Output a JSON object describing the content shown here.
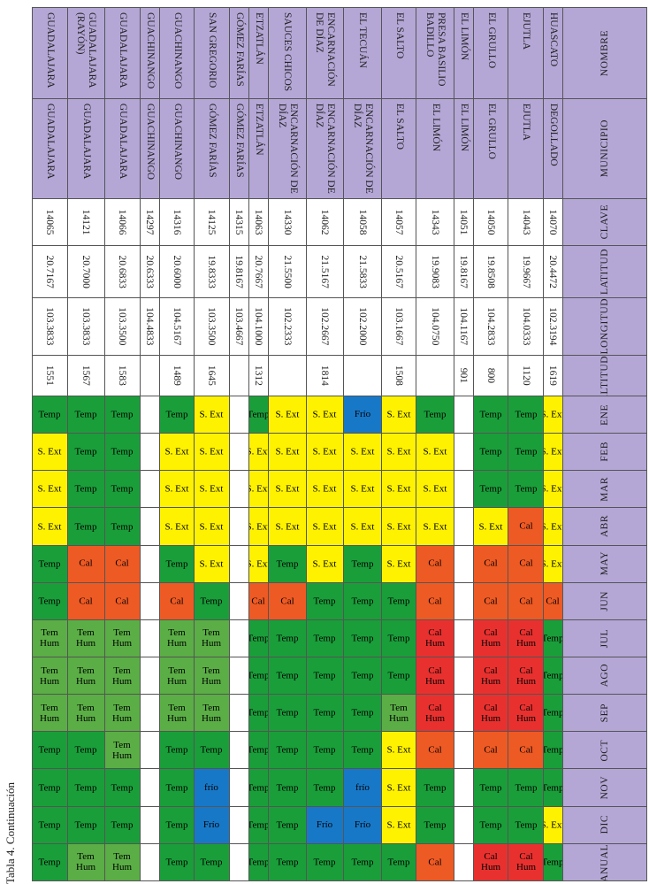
{
  "caption": "Tabla 4. Continuación",
  "headers": [
    "NOMBRE",
    "MUNICIPIO",
    "CLAVE",
    "LATITUD",
    "LONGITUD",
    "ALTITUD",
    "ENE",
    "FEB",
    "MAR",
    "ABR",
    "MAY",
    "JUN",
    "JUL",
    "AGO",
    "SEP",
    "OCT",
    "NOV",
    "DIC",
    "ANUAL"
  ],
  "climate_labels": {
    "T": "Temp",
    "S": "S. Ext",
    "C": "Cal",
    "H": "Cal Hum",
    "F": "Frío",
    "f": "frío",
    "M": "Tem Hum",
    "N": ""
  },
  "climate_colors": {
    "T": "#1a9e3a",
    "S": "#fff200",
    "C": "#ee5a24",
    "H": "#e8312f",
    "F": "#1878c8",
    "M": "#5aae45",
    "N": "#ffffff"
  },
  "rows": [
    {
      "nombre": "HUASCATO",
      "municipio": "DEGOLLADO",
      "clave": "14070",
      "latitud": "20.4472",
      "longitud": "102.3194",
      "altitud": "1619",
      "climate": [
        "S",
        "S",
        "S",
        "S",
        "S",
        "C",
        "T",
        "T",
        "T",
        "T",
        "T",
        "S",
        "T"
      ]
    },
    {
      "nombre": "EJUTLA",
      "municipio": "EJUTLA",
      "clave": "14043",
      "latitud": "19.9667",
      "longitud": "104.0333",
      "altitud": "1120",
      "climate": [
        "T",
        "T",
        "T",
        "C",
        "C",
        "C",
        "H",
        "H",
        "H",
        "C",
        "T",
        "T",
        "H"
      ]
    },
    {
      "nombre": "EL GRULLO",
      "municipio": "EL GRULLO",
      "clave": "14050",
      "latitud": "19.8508",
      "longitud": "104.2833",
      "altitud": "800",
      "climate": [
        "T",
        "T",
        "T",
        "S",
        "C",
        "C",
        "H",
        "H",
        "H",
        "C",
        "T",
        "T",
        "H"
      ]
    },
    {
      "nombre": "EL LIMÓN",
      "municipio": "EL LIMÓN",
      "clave": "14051",
      "latitud": "19.8167",
      "longitud": "104.1167",
      "altitud": "901",
      "climate": [
        "N",
        "N",
        "N",
        "N",
        "N",
        "N",
        "N",
        "N",
        "N",
        "N",
        "N",
        "N",
        "N"
      ]
    },
    {
      "nombre": "PRESA BASILIO BADILLO",
      "municipio": "EL LIMÓN",
      "clave": "14343",
      "latitud": "19.9083",
      "longitud": "104.0750",
      "altitud": "",
      "climate": [
        "T",
        "S",
        "S",
        "S",
        "C",
        "C",
        "H",
        "H",
        "H",
        "C",
        "T",
        "T",
        "C"
      ]
    },
    {
      "nombre": "EL SALTO",
      "municipio": "EL SALTO",
      "clave": "14057",
      "latitud": "20.5167",
      "longitud": "103.1667",
      "altitud": "1508",
      "climate": [
        "S",
        "S",
        "S",
        "S",
        "S",
        "T",
        "T",
        "T",
        "M",
        "S",
        "S",
        "S",
        "T"
      ]
    },
    {
      "nombre": "EL TECUÁN",
      "municipio": "ENCARNACIÓN DE DÍAZ",
      "clave": "14058",
      "latitud": "21.5833",
      "longitud": "102.2000",
      "altitud": "",
      "climate": [
        "F",
        "S",
        "S",
        "S",
        "T",
        "T",
        "T",
        "T",
        "T",
        "T",
        "f",
        "F",
        "T"
      ]
    },
    {
      "nombre": "ENCARNACIÓN DE DÍAZ",
      "municipio": "ENCARNACIÓN DE DÍAZ",
      "clave": "14062",
      "latitud": "21.5167",
      "longitud": "102.2667",
      "altitud": "1814",
      "climate": [
        "S",
        "S",
        "S",
        "S",
        "S",
        "T",
        "T",
        "T",
        "T",
        "T",
        "T",
        "F",
        "T"
      ]
    },
    {
      "nombre": "SAUCES CHICOS",
      "municipio": "ENCARNACIÓN DE DÍAZ",
      "clave": "14330",
      "latitud": "21.5500",
      "longitud": "102.2333",
      "altitud": "",
      "climate": [
        "S",
        "S",
        "S",
        "S",
        "T",
        "C",
        "T",
        "T",
        "T",
        "T",
        "T",
        "T",
        "T"
      ]
    },
    {
      "nombre": "ETZATLÁN",
      "municipio": "ETZATLÁN",
      "clave": "14063",
      "latitud": "20.7667",
      "longitud": "104.1000",
      "altitud": "1312",
      "climate": [
        "T",
        "S",
        "S",
        "S",
        "S",
        "C",
        "T",
        "T",
        "T",
        "T",
        "T",
        "T",
        "T"
      ]
    },
    {
      "nombre": "GÓMEZ FARÍAS",
      "municipio": "GÓMEZ FARÍAS",
      "clave": "14315",
      "latitud": "19.8167",
      "longitud": "103.4667",
      "altitud": "",
      "climate": [
        "N",
        "N",
        "N",
        "N",
        "N",
        "N",
        "N",
        "N",
        "N",
        "N",
        "N",
        "N",
        "N"
      ]
    },
    {
      "nombre": "SAN GREGORIO",
      "municipio": "GÓMEZ FARÍAS",
      "clave": "14125",
      "latitud": "19.8333",
      "longitud": "103.3500",
      "altitud": "1645",
      "climate": [
        "S",
        "S",
        "S",
        "S",
        "S",
        "T",
        "M",
        "M",
        "M",
        "T",
        "f",
        "F",
        "T"
      ]
    },
    {
      "nombre": "GUACHINANGO",
      "municipio": "GUACHINANGO",
      "clave": "14316",
      "latitud": "20.6000",
      "longitud": "104.5167",
      "altitud": "1489",
      "climate": [
        "T",
        "S",
        "S",
        "S",
        "T",
        "C",
        "M",
        "M",
        "M",
        "T",
        "T",
        "T",
        "T"
      ]
    },
    {
      "nombre": "GUACHINANGO",
      "municipio": "GUACHINANGO",
      "clave": "14297",
      "latitud": "20.6333",
      "longitud": "104.4833",
      "altitud": "",
      "climate": [
        "N",
        "N",
        "N",
        "N",
        "N",
        "N",
        "N",
        "N",
        "N",
        "N",
        "N",
        "N",
        "N"
      ]
    },
    {
      "nombre": "GUADALAJARA",
      "municipio": "GUADALAJARA",
      "clave": "14066",
      "latitud": "20.6833",
      "longitud": "103.3500",
      "altitud": "1583",
      "climate": [
        "T",
        "T",
        "T",
        "T",
        "C",
        "C",
        "M",
        "M",
        "M",
        "M",
        "T",
        "T",
        "M"
      ]
    },
    {
      "nombre": "GUADALAJARA (RAYÓN)",
      "municipio": "GUADALAJARA",
      "clave": "14121",
      "latitud": "20.7000",
      "longitud": "103.3833",
      "altitud": "1567",
      "climate": [
        "T",
        "T",
        "T",
        "T",
        "C",
        "C",
        "M",
        "M",
        "M",
        "T",
        "T",
        "T",
        "M"
      ]
    },
    {
      "nombre": "GUADALAJARA",
      "municipio": "GUADALAJARA",
      "clave": "14065",
      "latitud": "20.7167",
      "longitud": "103.3833",
      "altitud": "1551",
      "climate": [
        "T",
        "S",
        "S",
        "S",
        "T",
        "T",
        "M",
        "M",
        "M",
        "T",
        "T",
        "T",
        "T"
      ]
    }
  ]
}
